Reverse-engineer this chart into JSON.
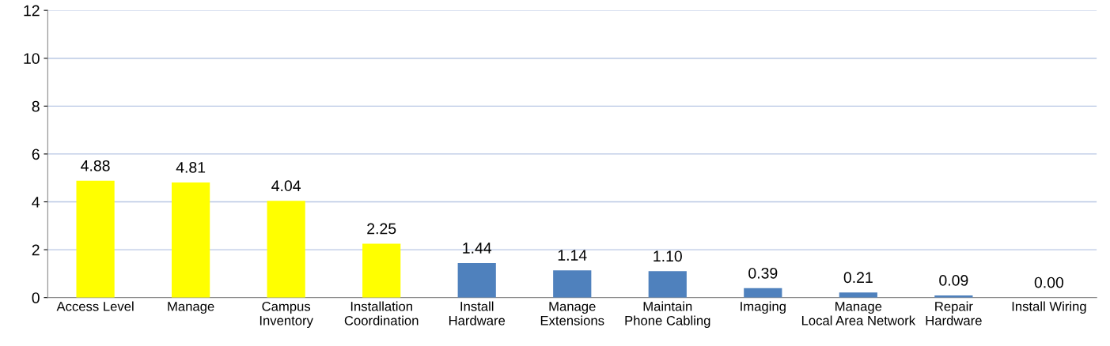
{
  "chart_data": {
    "type": "bar",
    "categories": [
      "Access Level",
      "Manage",
      "Campus Inventory",
      "Installation Coordination",
      "Install Hardware",
      "Manage Extensions",
      "Maintain Phone Cabling",
      "Imaging",
      "Manage Local Area Network",
      "Repair Hardware",
      "Install Wiring"
    ],
    "values": [
      4.88,
      4.81,
      4.04,
      2.25,
      1.44,
      1.14,
      1.1,
      0.39,
      0.21,
      0.09,
      0.0
    ],
    "value_labels": [
      "4.88",
      "4.81",
      "4.04",
      "2.25",
      "1.44",
      "1.14",
      "1.10",
      "0.39",
      "0.21",
      "0.09",
      "0.00"
    ],
    "colors": [
      "#ffff00",
      "#ffff00",
      "#ffff00",
      "#ffff00",
      "#4f81bd",
      "#4f81bd",
      "#4f81bd",
      "#4f81bd",
      "#4f81bd",
      "#4f81bd",
      "#4f81bd"
    ],
    "ylim": [
      0,
      12
    ],
    "yticks": [
      0,
      2,
      4,
      6,
      8,
      10,
      12
    ],
    "grid": "y",
    "legend": false
  }
}
